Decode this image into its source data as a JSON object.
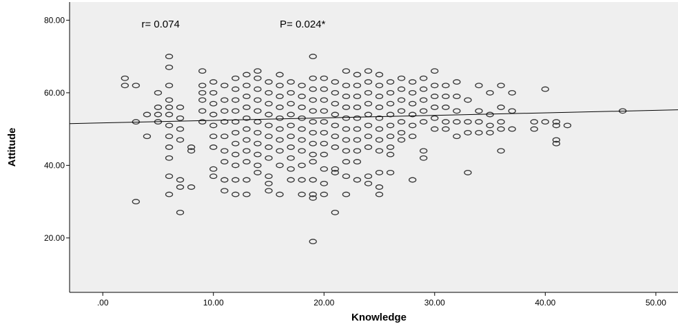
{
  "chart_data": {
    "type": "scatter",
    "xlabel": "Knowledge",
    "ylabel": "Attitude",
    "xlim": [
      -3,
      52
    ],
    "ylim": [
      5,
      85
    ],
    "x_ticks": [
      ".00",
      "10.00",
      "20.00",
      "30.00",
      "40.00",
      "50.00"
    ],
    "x_tick_values": [
      0,
      10,
      20,
      30,
      40,
      50
    ],
    "y_ticks": [
      "20.00",
      "40.00",
      "60.00",
      "80.00"
    ],
    "y_tick_values": [
      20,
      40,
      60,
      80
    ],
    "grid": false,
    "annotations": [
      {
        "text": "r= 0.074",
        "x": 3.5,
        "y": 78
      },
      {
        "text": "P= 0.024*",
        "x": 16,
        "y": 78
      }
    ],
    "fit_line": {
      "x": [
        -3,
        52
      ],
      "y": [
        51.5,
        55.3
      ]
    },
    "points": [
      [
        2,
        64
      ],
      [
        2,
        62
      ],
      [
        3,
        62
      ],
      [
        3,
        52
      ],
      [
        3,
        30
      ],
      [
        4,
        54
      ],
      [
        4,
        48
      ],
      [
        5,
        60
      ],
      [
        5,
        56
      ],
      [
        5,
        54
      ],
      [
        5,
        52
      ],
      [
        6,
        70
      ],
      [
        6,
        67
      ],
      [
        6,
        62
      ],
      [
        6,
        58
      ],
      [
        6,
        56
      ],
      [
        6,
        54
      ],
      [
        6,
        51
      ],
      [
        6,
        48
      ],
      [
        6,
        45
      ],
      [
        6,
        42
      ],
      [
        6,
        37
      ],
      [
        6,
        32
      ],
      [
        7,
        56
      ],
      [
        7,
        53
      ],
      [
        7,
        50
      ],
      [
        7,
        47
      ],
      [
        7,
        36
      ],
      [
        7,
        34
      ],
      [
        7,
        27
      ],
      [
        8,
        45
      ],
      [
        8,
        44
      ],
      [
        8,
        34
      ],
      [
        9,
        66
      ],
      [
        9,
        62
      ],
      [
        9,
        60
      ],
      [
        9,
        58
      ],
      [
        9,
        55
      ],
      [
        9,
        52
      ],
      [
        10,
        63
      ],
      [
        10,
        60
      ],
      [
        10,
        57
      ],
      [
        10,
        54
      ],
      [
        10,
        51
      ],
      [
        10,
        48
      ],
      [
        10,
        45
      ],
      [
        10,
        39
      ],
      [
        10,
        37
      ],
      [
        11,
        62
      ],
      [
        11,
        58
      ],
      [
        11,
        55
      ],
      [
        11,
        52
      ],
      [
        11,
        48
      ],
      [
        11,
        44
      ],
      [
        11,
        41
      ],
      [
        11,
        36
      ],
      [
        11,
        33
      ],
      [
        12,
        64
      ],
      [
        12,
        61
      ],
      [
        12,
        58
      ],
      [
        12,
        55
      ],
      [
        12,
        52
      ],
      [
        12,
        49
      ],
      [
        12,
        46
      ],
      [
        12,
        43
      ],
      [
        12,
        40
      ],
      [
        12,
        36
      ],
      [
        12,
        32
      ],
      [
        13,
        65
      ],
      [
        13,
        62
      ],
      [
        13,
        59
      ],
      [
        13,
        56
      ],
      [
        13,
        53
      ],
      [
        13,
        50
      ],
      [
        13,
        47
      ],
      [
        13,
        44
      ],
      [
        13,
        41
      ],
      [
        13,
        36
      ],
      [
        13,
        32
      ],
      [
        14,
        66
      ],
      [
        14,
        64
      ],
      [
        14,
        61
      ],
      [
        14,
        58
      ],
      [
        14,
        55
      ],
      [
        14,
        52
      ],
      [
        14,
        49
      ],
      [
        14,
        46
      ],
      [
        14,
        43
      ],
      [
        14,
        40
      ],
      [
        14,
        38
      ],
      [
        15,
        63
      ],
      [
        15,
        60
      ],
      [
        15,
        57
      ],
      [
        15,
        54
      ],
      [
        15,
        51
      ],
      [
        15,
        48
      ],
      [
        15,
        45
      ],
      [
        15,
        42
      ],
      [
        15,
        37
      ],
      [
        15,
        35
      ],
      [
        15,
        33
      ],
      [
        16,
        65
      ],
      [
        16,
        62
      ],
      [
        16,
        59
      ],
      [
        16,
        56
      ],
      [
        16,
        53
      ],
      [
        16,
        50
      ],
      [
        16,
        47
      ],
      [
        16,
        44
      ],
      [
        16,
        40
      ],
      [
        16,
        32
      ],
      [
        17,
        63
      ],
      [
        17,
        60
      ],
      [
        17,
        57
      ],
      [
        17,
        54
      ],
      [
        17,
        51
      ],
      [
        17,
        48
      ],
      [
        17,
        45
      ],
      [
        17,
        42
      ],
      [
        17,
        39
      ],
      [
        17,
        36
      ],
      [
        18,
        62
      ],
      [
        18,
        59
      ],
      [
        18,
        56
      ],
      [
        18,
        53
      ],
      [
        18,
        50
      ],
      [
        18,
        47
      ],
      [
        18,
        44
      ],
      [
        18,
        40
      ],
      [
        18,
        36
      ],
      [
        18,
        32
      ],
      [
        19,
        70
      ],
      [
        19,
        64
      ],
      [
        19,
        61
      ],
      [
        19,
        58
      ],
      [
        19,
        55
      ],
      [
        19,
        52
      ],
      [
        19,
        49
      ],
      [
        19,
        46
      ],
      [
        19,
        43
      ],
      [
        19,
        41
      ],
      [
        19,
        36
      ],
      [
        19,
        32
      ],
      [
        19,
        31
      ],
      [
        19,
        19
      ],
      [
        20,
        64
      ],
      [
        20,
        61
      ],
      [
        20,
        58
      ],
      [
        20,
        55
      ],
      [
        20,
        52
      ],
      [
        20,
        49
      ],
      [
        20,
        46
      ],
      [
        20,
        43
      ],
      [
        20,
        39
      ],
      [
        20,
        35
      ],
      [
        20,
        32
      ],
      [
        21,
        63
      ],
      [
        21,
        60
      ],
      [
        21,
        57
      ],
      [
        21,
        54
      ],
      [
        21,
        51
      ],
      [
        21,
        48
      ],
      [
        21,
        45
      ],
      [
        21,
        39
      ],
      [
        21,
        38
      ],
      [
        21,
        27
      ],
      [
        22,
        66
      ],
      [
        22,
        62
      ],
      [
        22,
        59
      ],
      [
        22,
        56
      ],
      [
        22,
        53
      ],
      [
        22,
        50
      ],
      [
        22,
        47
      ],
      [
        22,
        44
      ],
      [
        22,
        41
      ],
      [
        22,
        37
      ],
      [
        22,
        32
      ],
      [
        23,
        65
      ],
      [
        23,
        62
      ],
      [
        23,
        59
      ],
      [
        23,
        56
      ],
      [
        23,
        53
      ],
      [
        23,
        50
      ],
      [
        23,
        47
      ],
      [
        23,
        44
      ],
      [
        23,
        41
      ],
      [
        23,
        36
      ],
      [
        24,
        66
      ],
      [
        24,
        63
      ],
      [
        24,
        60
      ],
      [
        24,
        57
      ],
      [
        24,
        54
      ],
      [
        24,
        51
      ],
      [
        24,
        48
      ],
      [
        24,
        45
      ],
      [
        24,
        37
      ],
      [
        24,
        35
      ],
      [
        25,
        65
      ],
      [
        25,
        62
      ],
      [
        25,
        59
      ],
      [
        25,
        56
      ],
      [
        25,
        53
      ],
      [
        25,
        50
      ],
      [
        25,
        47
      ],
      [
        25,
        44
      ],
      [
        25,
        38
      ],
      [
        25,
        34
      ],
      [
        25,
        32
      ],
      [
        26,
        63
      ],
      [
        26,
        60
      ],
      [
        26,
        57
      ],
      [
        26,
        54
      ],
      [
        26,
        51
      ],
      [
        26,
        48
      ],
      [
        26,
        45
      ],
      [
        26,
        43
      ],
      [
        26,
        38
      ],
      [
        27,
        64
      ],
      [
        27,
        61
      ],
      [
        27,
        58
      ],
      [
        27,
        55
      ],
      [
        27,
        52
      ],
      [
        27,
        49
      ],
      [
        27,
        47
      ],
      [
        28,
        63
      ],
      [
        28,
        60
      ],
      [
        28,
        57
      ],
      [
        28,
        54
      ],
      [
        28,
        51
      ],
      [
        28,
        48
      ],
      [
        28,
        36
      ],
      [
        29,
        64
      ],
      [
        29,
        61
      ],
      [
        29,
        58
      ],
      [
        29,
        55
      ],
      [
        29,
        52
      ],
      [
        29,
        44
      ],
      [
        29,
        42
      ],
      [
        30,
        66
      ],
      [
        30,
        62
      ],
      [
        30,
        59
      ],
      [
        30,
        56
      ],
      [
        30,
        53
      ],
      [
        30,
        50
      ],
      [
        31,
        62
      ],
      [
        31,
        59
      ],
      [
        31,
        56
      ],
      [
        31,
        52
      ],
      [
        31,
        50
      ],
      [
        32,
        63
      ],
      [
        32,
        59
      ],
      [
        32,
        55
      ],
      [
        32,
        52
      ],
      [
        32,
        48
      ],
      [
        33,
        58
      ],
      [
        33,
        52
      ],
      [
        33,
        49
      ],
      [
        33,
        38
      ],
      [
        34,
        62
      ],
      [
        34,
        55
      ],
      [
        34,
        52
      ],
      [
        34,
        49
      ],
      [
        35,
        60
      ],
      [
        35,
        54
      ],
      [
        35,
        51
      ],
      [
        35,
        49
      ],
      [
        36,
        62
      ],
      [
        36,
        56
      ],
      [
        36,
        52
      ],
      [
        36,
        50
      ],
      [
        36,
        44
      ],
      [
        37,
        60
      ],
      [
        37,
        55
      ],
      [
        37,
        50
      ],
      [
        39,
        52
      ],
      [
        39,
        50
      ],
      [
        40,
        61
      ],
      [
        40,
        52
      ],
      [
        41,
        52
      ],
      [
        41,
        51
      ],
      [
        41,
        47
      ],
      [
        41,
        46
      ],
      [
        42,
        51
      ],
      [
        47,
        55
      ]
    ]
  }
}
